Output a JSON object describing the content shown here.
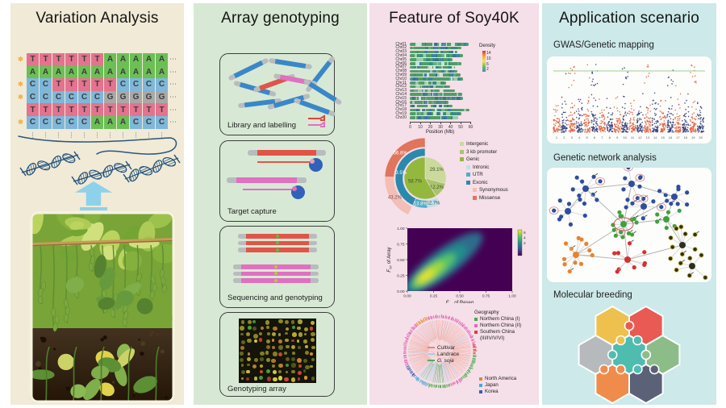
{
  "figure": {
    "panels": [
      {
        "title": "Variation Analysis",
        "bg": "#f0ead6"
      },
      {
        "title": "Array genotyping",
        "bg": "#d7e9d4"
      },
      {
        "title": "Feature of Soy40K",
        "bg": "#f5dfe8"
      },
      {
        "title": "Application scenario",
        "bg": "#cde9e9"
      }
    ]
  },
  "variation": {
    "star_icon": "✽",
    "ellipsis": "⋯",
    "vdots": "⋮",
    "base_colors": {
      "A": "#6cbf55",
      "T": "#e3738e",
      "C": "#7fb7d9",
      "G": "#a8a8a8"
    },
    "alignment_rows": [
      {
        "star": true,
        "bases": "TTTTTTAAAAA"
      },
      {
        "star": false,
        "bases": "AAAAAAAAAAA"
      },
      {
        "star": true,
        "bases": "CCTTTTTCCCC"
      },
      {
        "star": true,
        "bases": "CCCCCCGGGGG"
      },
      {
        "star": false,
        "bases": "TTTTTTTTTTT"
      },
      {
        "star": true,
        "bases": "CCCCCAAACCC"
      }
    ]
  },
  "array_steps": [
    {
      "label": "Library and labelling"
    },
    {
      "label": "Target capture"
    },
    {
      "label": "Sequencing and genotyping"
    },
    {
      "label": "Genotyping array"
    }
  ],
  "applications": [
    {
      "label": "GWAS/Genetic mapping"
    },
    {
      "label": "Genetic network analysis"
    },
    {
      "label": "Molecular breeding"
    }
  ],
  "puzzle_colors": [
    "#eec14e",
    "#e85a52",
    "#b7babc",
    "#4fbcb0",
    "#8cbd89",
    "#ef8c4c",
    "#5b6177"
  ],
  "chart_data": [
    {
      "id": "snp_density",
      "type": "bar",
      "orientation": "horizontal",
      "categories": [
        "Chr01",
        "Chr02",
        "Chr03",
        "Chr04",
        "Chr05",
        "Chr06",
        "Chr07",
        "Chr08",
        "Chr09",
        "Chr10",
        "Chr11",
        "Chr12",
        "Chr13",
        "Chr14",
        "Chr15",
        "Chr16",
        "Chr17",
        "Chr18",
        "Chr19",
        "Chr20"
      ],
      "values": [
        58,
        51,
        47,
        53,
        42,
        51,
        45,
        47,
        50,
        53,
        36,
        40,
        45,
        52,
        53,
        38,
        42,
        59,
        51,
        48
      ],
      "xlabel": "Position (Mb)",
      "xticks": [
        0,
        10,
        20,
        30,
        40,
        50,
        60
      ],
      "xlim": [
        0,
        62
      ],
      "bar_base_color": "#4f9d68",
      "legend_title": "Density",
      "legend_ticks": [
        14,
        10,
        6,
        2
      ],
      "legend_gradient": [
        "#d23b33",
        "#f0a73e",
        "#f2e360",
        "#6cbf55",
        "#3f8fc4"
      ]
    },
    {
      "id": "annotation_donut",
      "type": "pie",
      "nested": true,
      "rings": [
        {
          "level": 0,
          "slices": [
            {
              "label": "Intergenic",
              "value": 29.1,
              "color": "#c9da9b",
              "text": "29.1%"
            },
            {
              "label": "3 kb promoter",
              "value": 12.2,
              "color": "#a9c46a",
              "text": "12.2%"
            },
            {
              "label": "Genic",
              "value": 58.7,
              "color": "#94b83e",
              "text": "58.7%"
            }
          ]
        },
        {
          "level": 1,
          "parent": "Genic",
          "slices": [
            {
              "label": "Intronic",
              "value": 12.7,
              "color": "#bfdfe9",
              "text": "12.7%"
            },
            {
              "label": "UTR",
              "value": 13.8,
              "color": "#4fadc6",
              "text": "13.8%"
            },
            {
              "label": "Exonic",
              "value": 73.5,
              "color": "#2b89ad",
              "text": "73.5%"
            }
          ]
        },
        {
          "level": 2,
          "parent": "Exonic",
          "slices": [
            {
              "label": "Synonymous",
              "value": 43.2,
              "color": "#f3beb5",
              "text": "43.2%"
            },
            {
              "label": "Missense",
              "value": 56.8,
              "color": "#e0745c",
              "text": "56.8%"
            }
          ]
        }
      ],
      "legend": [
        {
          "label": "Intergenic",
          "color": "#c9da9b",
          "indent": 0
        },
        {
          "label": "3 kb promoter",
          "color": "#a9c46a",
          "indent": 0
        },
        {
          "label": "Genic",
          "color": "#94b83e",
          "indent": 0
        },
        {
          "label": "Intronic",
          "color": "#bfdfe9",
          "indent": 1
        },
        {
          "label": "UTR",
          "color": "#4fadc6",
          "indent": 1
        },
        {
          "label": "Exonic",
          "color": "#2b89ad",
          "indent": 1
        },
        {
          "label": "Synonymous",
          "color": "#f3beb5",
          "indent": 2
        },
        {
          "label": "Missense",
          "color": "#e0745c",
          "indent": 2
        }
      ]
    },
    {
      "id": "fst_density",
      "type": "heatmap",
      "xlabel": {
        "sym": "F",
        "sub": "ST",
        "rest": " of Reseq"
      },
      "ylabel": {
        "sym": "F",
        "sub": "ST",
        "rest": " of Array"
      },
      "xticks": [
        "0.00",
        "0.25",
        "0.50",
        "0.75",
        "1.00"
      ],
      "yticks": [
        "0.00",
        "0.25",
        "0.50",
        "0.75",
        "1.00"
      ],
      "colorbar_ticks": [
        "6",
        "4",
        "2"
      ],
      "palette": [
        "#440154",
        "#3b528b",
        "#21918c",
        "#5ec962",
        "#f4e61e"
      ],
      "pattern": "high density along diagonal from (0.05,0.05) to (0.62,0.78), peak near (0.20,0.27)"
    },
    {
      "id": "phylo_circle",
      "type": "other",
      "tree_legend": [
        {
          "label": "Cultivar",
          "color": "#e8857c",
          "italic": false
        },
        {
          "label": "Landrace",
          "color": "#a9cce8",
          "italic": false
        },
        {
          "label": "G. soja",
          "color": "#5aa85a",
          "italic": true
        }
      ],
      "geo_title": "Geography",
      "geo_legend_top": [
        {
          "label": "Northern China (I)",
          "color": "#4ba84b"
        },
        {
          "label": "Northern China (II)",
          "color": "#e06bb4"
        },
        {
          "label": "Southern China",
          "label2": "(III/IV/V/VI)",
          "color": "#d94040"
        }
      ],
      "geo_legend_bottom": [
        {
          "label": "North America",
          "color": "#e0883a"
        },
        {
          "label": "Japan",
          "color": "#49a8d8"
        },
        {
          "label": "Korea",
          "color": "#3b5bb0"
        }
      ]
    },
    {
      "id": "gwas_manhattan",
      "type": "scatter",
      "xticks": [
        "1",
        "2",
        "3",
        "4",
        "5",
        "6",
        "7",
        "8",
        "9",
        "10",
        "11",
        "12",
        "13",
        "14",
        "15",
        "16",
        "17",
        "18",
        "19",
        "20"
      ],
      "point_colors": [
        "#e2603d",
        "#2e3d7c"
      ],
      "threshold_color": "#9ccf92"
    }
  ]
}
